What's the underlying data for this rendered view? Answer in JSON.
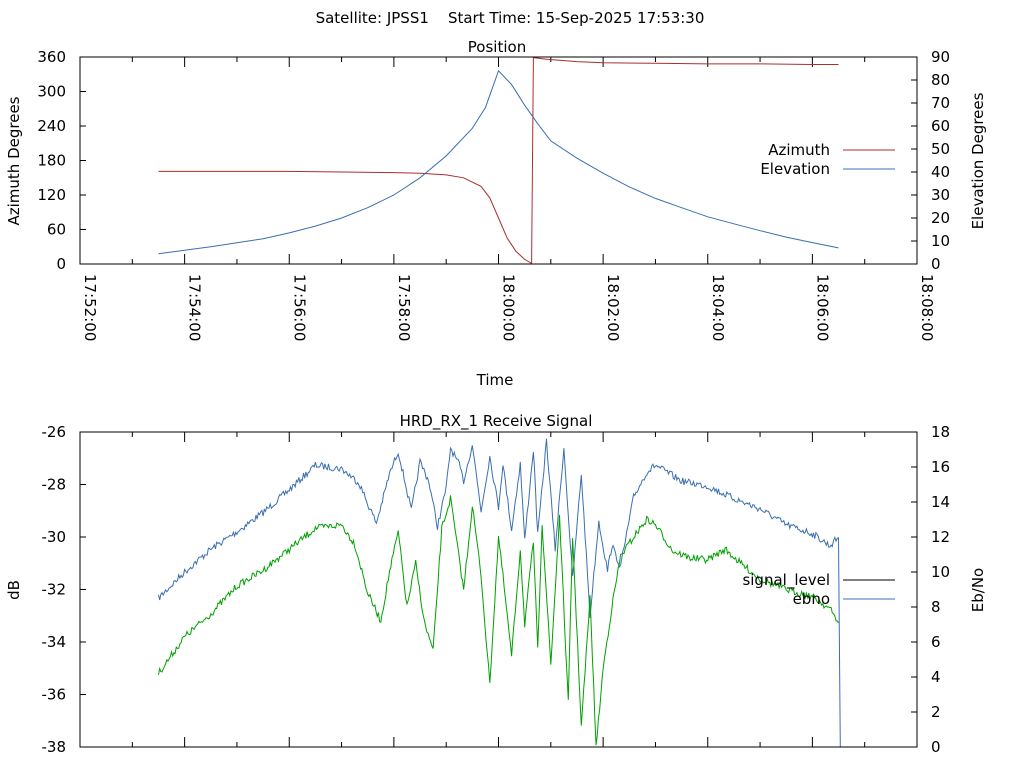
{
  "page_title": "Satellite: JPSS1    Start Time: 15-Sep-2025 17:53:30",
  "chart_data": [
    {
      "type": "line",
      "title": "Position",
      "xlabel": "Time",
      "ylabel": "Azimuth Degrees",
      "y2label": "Elevation Degrees",
      "xlim": [
        "17:52:00",
        "18:08:00"
      ],
      "ylim": [
        0,
        360
      ],
      "y2lim": [
        0,
        90
      ],
      "x_ticks": [
        "17:52:00",
        "17:54:00",
        "17:56:00",
        "17:58:00",
        "18:00:00",
        "18:02:00",
        "18:04:00",
        "18:06:00",
        "18:08:00"
      ],
      "y_ticks": [
        "0",
        "60",
        "120",
        "180",
        "240",
        "300",
        "360"
      ],
      "y2_ticks": [
        "0",
        "10",
        "20",
        "30",
        "40",
        "50",
        "60",
        "70",
        "80",
        "90"
      ],
      "grid": false,
      "legend": "right",
      "series": [
        {
          "name": "Azimuth",
          "axis": "left",
          "color": "#aa2f2f",
          "points": [
            [
              "17:53:30",
              161
            ],
            [
              "17:55:00",
              161
            ],
            [
              "17:56:00",
              161
            ],
            [
              "17:57:00",
              160
            ],
            [
              "17:58:00",
              159
            ],
            [
              "17:58:30",
              158
            ],
            [
              "17:59:00",
              155
            ],
            [
              "17:59:20",
              150
            ],
            [
              "17:59:40",
              135
            ],
            [
              "17:59:50",
              115
            ],
            [
              "18:00:00",
              80
            ],
            [
              "18:00:10",
              45
            ],
            [
              "18:00:20",
              22
            ],
            [
              "18:00:30",
              8
            ],
            [
              "18:00:38",
              1
            ],
            [
              "18:00:40",
              359
            ],
            [
              "18:00:55",
              356
            ],
            [
              "18:01:30",
              352
            ],
            [
              "18:02:00",
              350
            ],
            [
              "18:03:00",
              349
            ],
            [
              "18:04:00",
              348
            ],
            [
              "18:05:00",
              348
            ],
            [
              "18:06:00",
              347
            ],
            [
              "18:06:30",
              347
            ]
          ]
        },
        {
          "name": "Elevation",
          "axis": "right",
          "color": "#3a6fb0",
          "points": [
            [
              "17:53:30",
              4.5
            ],
            [
              "17:54:00",
              6
            ],
            [
              "17:54:30",
              7.5
            ],
            [
              "17:55:00",
              9.2
            ],
            [
              "17:55:30",
              11
            ],
            [
              "17:56:00",
              13.5
            ],
            [
              "17:56:30",
              16.5
            ],
            [
              "17:57:00",
              20
            ],
            [
              "17:57:30",
              24.5
            ],
            [
              "17:58:00",
              30
            ],
            [
              "17:58:30",
              37.5
            ],
            [
              "17:59:00",
              47
            ],
            [
              "17:59:30",
              59
            ],
            [
              "17:59:45",
              68
            ],
            [
              "18:00:00",
              84
            ],
            [
              "18:00:15",
              78
            ],
            [
              "18:00:30",
              69
            ],
            [
              "18:00:45",
              61
            ],
            [
              "18:01:00",
              53.5
            ],
            [
              "18:01:30",
              46
            ],
            [
              "18:02:00",
              39.5
            ],
            [
              "18:02:30",
              33.5
            ],
            [
              "18:03:00",
              28.5
            ],
            [
              "18:03:30",
              24.5
            ],
            [
              "18:04:00",
              20.5
            ],
            [
              "18:04:30",
              17.5
            ],
            [
              "18:05:00",
              14.5
            ],
            [
              "18:05:30",
              11.7
            ],
            [
              "18:06:00",
              9.3
            ],
            [
              "18:06:30",
              7
            ]
          ]
        }
      ]
    },
    {
      "type": "line",
      "title": "HRD_RX_1 Receive Signal",
      "xlabel": "",
      "ylabel": "dB",
      "y2label": "Eb/No",
      "xlim": [
        "17:52:00",
        "18:08:00"
      ],
      "ylim": [
        -38,
        -26
      ],
      "y2lim": [
        0,
        18
      ],
      "y_ticks": [
        "-26",
        "-28",
        "-30",
        "-32",
        "-34",
        "-36",
        "-38"
      ],
      "y2_ticks": [
        "0",
        "2",
        "4",
        "6",
        "8",
        "10",
        "12",
        "14",
        "16",
        "18"
      ],
      "grid": false,
      "legend": "right",
      "series": [
        {
          "name": "signal_level",
          "axis": "left",
          "color": "#000000",
          "points": []
        },
        {
          "name": "ebno",
          "axis": "right",
          "color": "#3a6fb0",
          "points": [
            [
              "17:53:30",
              8.5
            ],
            [
              "17:54:00",
              10
            ],
            [
              "17:54:30",
              11.3
            ],
            [
              "17:55:00",
              12.3
            ],
            [
              "17:55:30",
              13.4
            ],
            [
              "17:56:00",
              14.7
            ],
            [
              "17:56:30",
              16.1
            ],
            [
              "17:57:00",
              15.9
            ],
            [
              "17:57:20",
              15.1
            ],
            [
              "17:57:30",
              13.9
            ],
            [
              "17:57:40",
              12.8
            ],
            [
              "17:57:55",
              15.6
            ],
            [
              "17:58:05",
              16.9
            ],
            [
              "17:58:20",
              13.5
            ],
            [
              "17:58:30",
              16.3
            ],
            [
              "17:58:40",
              15.2
            ],
            [
              "17:58:50",
              12.6
            ],
            [
              "17:59:00",
              14.8
            ],
            [
              "17:59:05",
              17.1
            ],
            [
              "17:59:15",
              16.1
            ],
            [
              "17:59:20",
              15.2
            ],
            [
              "17:59:30",
              17.3
            ],
            [
              "17:59:40",
              13.5
            ],
            [
              "17:59:50",
              16.6
            ],
            [
              "18:00:00",
              13.7
            ],
            [
              "18:00:05",
              16.2
            ],
            [
              "18:00:15",
              12.4
            ],
            [
              "18:00:25",
              16.2
            ],
            [
              "18:00:30",
              11.8
            ],
            [
              "18:00:40",
              17.0
            ],
            [
              "18:00:45",
              12.1
            ],
            [
              "18:00:55",
              17.5
            ],
            [
              "18:01:05",
              11.3
            ],
            [
              "18:01:15",
              17.1
            ],
            [
              "18:01:25",
              9.6
            ],
            [
              "18:01:35",
              15.6
            ],
            [
              "18:01:45",
              7.5
            ],
            [
              "18:01:55",
              12.9
            ],
            [
              "18:02:05",
              10.1
            ],
            [
              "18:02:10",
              11.5
            ],
            [
              "18:02:20",
              10.3
            ],
            [
              "18:02:35",
              14.3
            ],
            [
              "18:02:50",
              15.7
            ],
            [
              "18:03:00",
              16.1
            ],
            [
              "18:03:30",
              15.2
            ],
            [
              "18:04:00",
              14.9
            ],
            [
              "18:04:30",
              14.2
            ],
            [
              "18:05:00",
              13.6
            ],
            [
              "18:05:30",
              12.7
            ],
            [
              "18:06:00",
              12.2
            ],
            [
              "18:06:20",
              11.5
            ],
            [
              "18:06:30",
              12.0
            ],
            [
              "18:06:32",
              0
            ]
          ]
        },
        {
          "name": "",
          "axis": "right",
          "color": "#00a000",
          "points": [
            [
              "17:53:30",
              4.2
            ],
            [
              "17:54:00",
              6.3
            ],
            [
              "17:54:30",
              7.6
            ],
            [
              "17:55:00",
              9.2
            ],
            [
              "17:55:30",
              10.1
            ],
            [
              "17:56:00",
              11.3
            ],
            [
              "17:56:30",
              12.5
            ],
            [
              "17:57:00",
              12.7
            ],
            [
              "17:57:15",
              11.6
            ],
            [
              "17:57:30",
              8.8
            ],
            [
              "17:57:45",
              7.2
            ],
            [
              "17:57:55",
              10.0
            ],
            [
              "17:58:05",
              12.3
            ],
            [
              "17:58:15",
              8.0
            ],
            [
              "17:58:25",
              10.5
            ],
            [
              "17:58:35",
              7.1
            ],
            [
              "17:58:45",
              5.5
            ],
            [
              "17:58:55",
              12.5
            ],
            [
              "17:59:05",
              14.2
            ],
            [
              "17:59:15",
              10.7
            ],
            [
              "17:59:20",
              9.0
            ],
            [
              "17:59:30",
              13.8
            ],
            [
              "17:59:40",
              9.8
            ],
            [
              "17:59:50",
              3.6
            ],
            [
              "18:00:00",
              12.0
            ],
            [
              "18:00:05",
              9.8
            ],
            [
              "18:00:15",
              5.2
            ],
            [
              "18:00:25",
              11.3
            ],
            [
              "18:00:30",
              7.0
            ],
            [
              "18:00:40",
              11.7
            ],
            [
              "18:00:45",
              5.5
            ],
            [
              "18:00:50",
              12.8
            ],
            [
              "18:01:00",
              4.7
            ],
            [
              "18:01:10",
              13.2
            ],
            [
              "18:01:20",
              2.5
            ],
            [
              "18:01:25",
              12.0
            ],
            [
              "18:01:35",
              1.2
            ],
            [
              "18:01:45",
              8.5
            ],
            [
              "18:01:52",
              0
            ],
            [
              "18:02:00",
              4.5
            ],
            [
              "18:02:10",
              8.0
            ],
            [
              "18:02:20",
              10.9
            ],
            [
              "18:02:35",
              12.0
            ],
            [
              "18:02:50",
              13.0
            ],
            [
              "18:03:00",
              12.7
            ],
            [
              "18:03:20",
              11.2
            ],
            [
              "18:03:40",
              10.8
            ],
            [
              "18:04:00",
              10.7
            ],
            [
              "18:04:20",
              11.3
            ],
            [
              "18:04:40",
              10.4
            ],
            [
              "18:05:00",
              9.6
            ],
            [
              "18:05:30",
              9.0
            ],
            [
              "18:06:00",
              8.6
            ],
            [
              "18:06:20",
              7.9
            ],
            [
              "18:06:30",
              7.1
            ]
          ]
        }
      ]
    }
  ]
}
